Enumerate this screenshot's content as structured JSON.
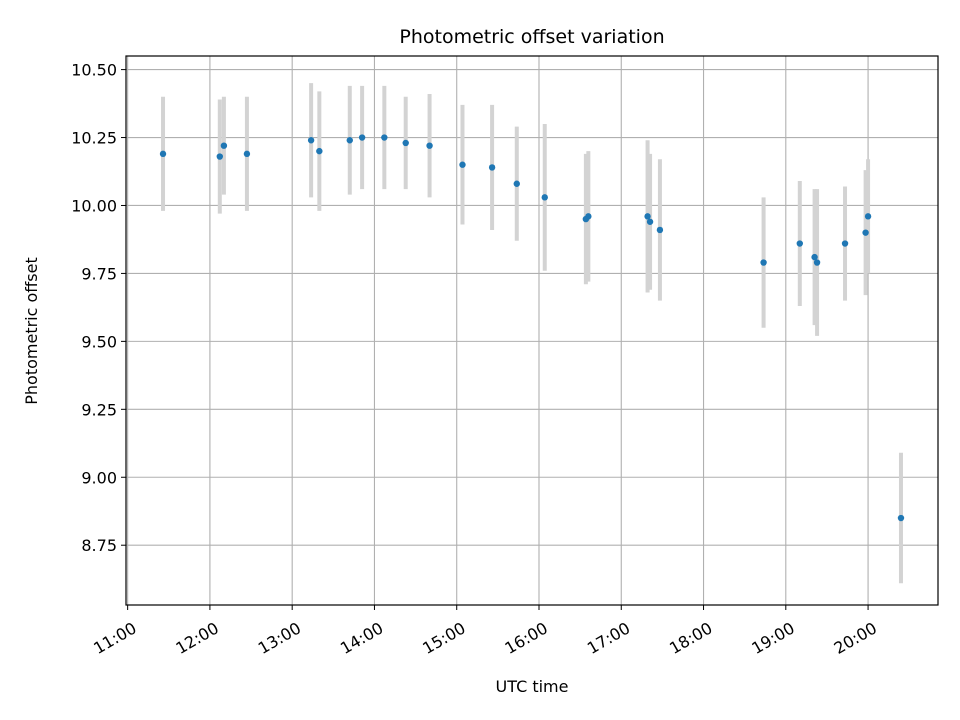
{
  "chart_data": {
    "type": "scatter",
    "title": "Photometric offset variation",
    "xlabel": "UTC time",
    "ylabel": "Photometric offset",
    "x_unit": "UTC hours",
    "xlim": [
      10.98,
      20.85
    ],
    "ylim": [
      8.53,
      10.55
    ],
    "x_ticks": [
      {
        "value": 11,
        "label": "11:00"
      },
      {
        "value": 12,
        "label": "12:00"
      },
      {
        "value": 13,
        "label": "13:00"
      },
      {
        "value": 14,
        "label": "14:00"
      },
      {
        "value": 15,
        "label": "15:00"
      },
      {
        "value": 16,
        "label": "16:00"
      },
      {
        "value": 17,
        "label": "17:00"
      },
      {
        "value": 18,
        "label": "18:00"
      },
      {
        "value": 19,
        "label": "19:00"
      },
      {
        "value": 20,
        "label": "20:00"
      }
    ],
    "y_ticks": [
      {
        "value": 8.75,
        "label": "8.75"
      },
      {
        "value": 9.0,
        "label": "9.00"
      },
      {
        "value": 9.25,
        "label": "9.25"
      },
      {
        "value": 9.5,
        "label": "9.50"
      },
      {
        "value": 9.75,
        "label": "9.75"
      },
      {
        "value": 10.0,
        "label": "10.00"
      },
      {
        "value": 10.25,
        "label": "10.25"
      },
      {
        "value": 10.5,
        "label": "10.50"
      }
    ],
    "grid": true,
    "point_color": "#1f77b4",
    "errorbar_color": "#d3d3d3",
    "points": [
      {
        "x": 11.43,
        "y": 10.19,
        "err": 0.21
      },
      {
        "x": 12.12,
        "y": 10.18,
        "err": 0.21
      },
      {
        "x": 12.17,
        "y": 10.22,
        "err": 0.18
      },
      {
        "x": 12.45,
        "y": 10.19,
        "err": 0.21
      },
      {
        "x": 13.23,
        "y": 10.24,
        "err": 0.21
      },
      {
        "x": 13.33,
        "y": 10.2,
        "err": 0.22
      },
      {
        "x": 13.7,
        "y": 10.24,
        "err": 0.2
      },
      {
        "x": 13.85,
        "y": 10.25,
        "err": 0.19
      },
      {
        "x": 14.12,
        "y": 10.25,
        "err": 0.19
      },
      {
        "x": 14.38,
        "y": 10.23,
        "err": 0.17
      },
      {
        "x": 14.67,
        "y": 10.22,
        "err": 0.19
      },
      {
        "x": 15.07,
        "y": 10.15,
        "err": 0.22
      },
      {
        "x": 15.43,
        "y": 10.14,
        "err": 0.23
      },
      {
        "x": 15.73,
        "y": 10.08,
        "err": 0.21
      },
      {
        "x": 16.07,
        "y": 10.03,
        "err": 0.27
      },
      {
        "x": 16.57,
        "y": 9.95,
        "err": 0.24
      },
      {
        "x": 16.6,
        "y": 9.96,
        "err": 0.24
      },
      {
        "x": 17.32,
        "y": 9.96,
        "err": 0.28
      },
      {
        "x": 17.35,
        "y": 9.94,
        "err": 0.25
      },
      {
        "x": 17.47,
        "y": 9.91,
        "err": 0.26
      },
      {
        "x": 18.73,
        "y": 9.79,
        "err": 0.24
      },
      {
        "x": 19.17,
        "y": 9.86,
        "err": 0.23
      },
      {
        "x": 19.35,
        "y": 9.81,
        "err": 0.25
      },
      {
        "x": 19.38,
        "y": 9.79,
        "err": 0.27
      },
      {
        "x": 19.72,
        "y": 9.86,
        "err": 0.21
      },
      {
        "x": 19.97,
        "y": 9.9,
        "err": 0.23
      },
      {
        "x": 20.0,
        "y": 9.96,
        "err": 0.21
      },
      {
        "x": 20.4,
        "y": 8.85,
        "err": 0.24
      }
    ]
  }
}
